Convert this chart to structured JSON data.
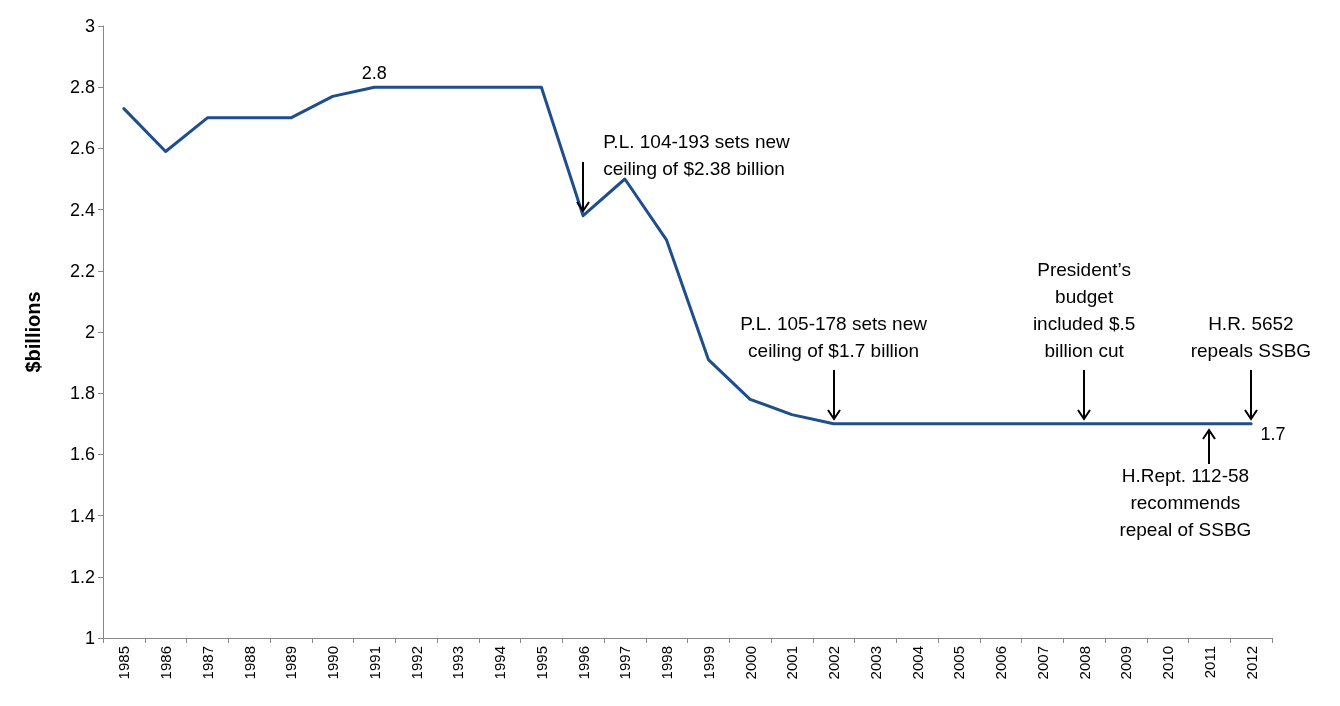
{
  "chart_data": {
    "type": "line",
    "ylabel": "$billions",
    "categories": [
      "1985",
      "1986",
      "1987",
      "1988",
      "1989",
      "1990",
      "1991",
      "1992",
      "1993",
      "1994",
      "1995",
      "1996",
      "1997",
      "1998",
      "1999",
      "2000",
      "2001",
      "2002",
      "2003",
      "2004",
      "2005",
      "2006",
      "2007",
      "2008",
      "2009",
      "2010",
      "2011",
      "2012"
    ],
    "series": [
      {
        "color": "#1f4e8c",
        "values": [
          2.73,
          2.59,
          2.7,
          2.7,
          2.7,
          2.77,
          2.8,
          2.8,
          2.8,
          2.8,
          2.8,
          2.38,
          2.5,
          2.3,
          1.91,
          1.78,
          1.73,
          1.7,
          1.7,
          1.7,
          1.7,
          1.7,
          1.7,
          1.7,
          1.7,
          1.7,
          1.7,
          1.7
        ],
        "value_labels": [
          null,
          null,
          null,
          null,
          null,
          null,
          "2.8",
          null,
          null,
          null,
          null,
          null,
          null,
          null,
          null,
          null,
          null,
          null,
          null,
          null,
          null,
          null,
          null,
          null,
          null,
          null,
          null,
          "1.7"
        ]
      }
    ],
    "ylim": [
      1,
      3
    ],
    "yticks": [
      1,
      1.2,
      1.4,
      1.6,
      1.8,
      2,
      2.2,
      2.4,
      2.6,
      2.8,
      3
    ],
    "grid": false,
    "marker": "none",
    "line_style": "solid",
    "annotations": [
      {
        "text": "P.L. 104-193 sets new\nceiling of $2.38 billion",
        "x": "1996",
        "y": 2.38
      },
      {
        "text": "P.L. 105-178 sets new\nceiling of $1.7 billion",
        "x": "2002",
        "y": 1.7
      },
      {
        "text": "President’s\nbudget\nincluded $.5\nbillion cut",
        "x": "2008",
        "y": 1.7
      },
      {
        "text": "H.R. 5652\nrepeals SSBG",
        "x": "2012",
        "y": 1.7
      },
      {
        "text": "H.Rept. 112-58\nrecommends\nrepeal of SSBG",
        "x": "2011",
        "y": 1.7
      }
    ]
  }
}
